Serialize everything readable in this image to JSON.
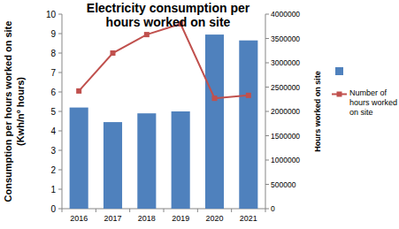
{
  "chart_data": {
    "type": "bar",
    "title": "Electricity consumption per hours worked on site",
    "y_label": "Consumption per hours worked on site (Kwh/nº hours)",
    "y2_label": "Hours worked on site",
    "categories": [
      "2016",
      "2017",
      "2018",
      "2019",
      "2020",
      "2021"
    ],
    "ylim": [
      0,
      10
    ],
    "yticks": [
      0,
      1,
      2,
      3,
      4,
      5,
      6,
      7,
      8,
      9,
      10
    ],
    "y2lim": [
      0,
      4000000
    ],
    "y2ticks": [
      0,
      500000,
      1000000,
      1500000,
      2000000,
      2500000,
      3000000,
      3500000,
      4000000
    ],
    "legend": "right",
    "series": [
      {
        "type": "bar",
        "color": "#4f81bd",
        "values": [
          5.2,
          4.45,
          4.9,
          5.0,
          8.95,
          8.65
        ]
      },
      {
        "name": "Number of hours worked on site",
        "type": "line",
        "axis": "y2",
        "color": "#c0504d",
        "marker": "square",
        "values": [
          2420000,
          3200000,
          3580000,
          3800000,
          2270000,
          2330000
        ]
      }
    ]
  }
}
